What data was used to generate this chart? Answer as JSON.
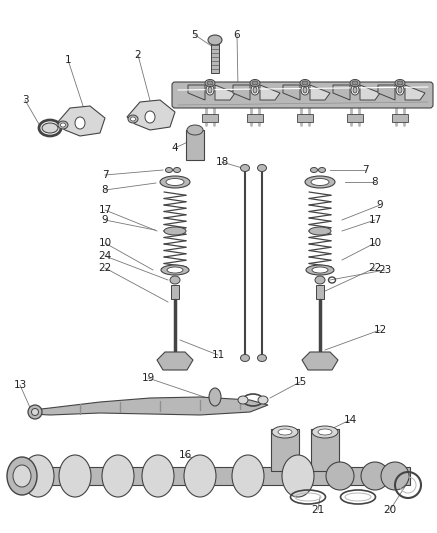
{
  "bg_color": "#ffffff",
  "line_color": "#444444",
  "part_stroke": "#444444",
  "part_fill_light": "#d8d8d8",
  "part_fill_mid": "#b8b8b8",
  "part_fill_dark": "#909090",
  "label_color": "#222222",
  "leader_color": "#777777",
  "fig_width": 4.37,
  "fig_height": 5.33,
  "dpi": 100
}
